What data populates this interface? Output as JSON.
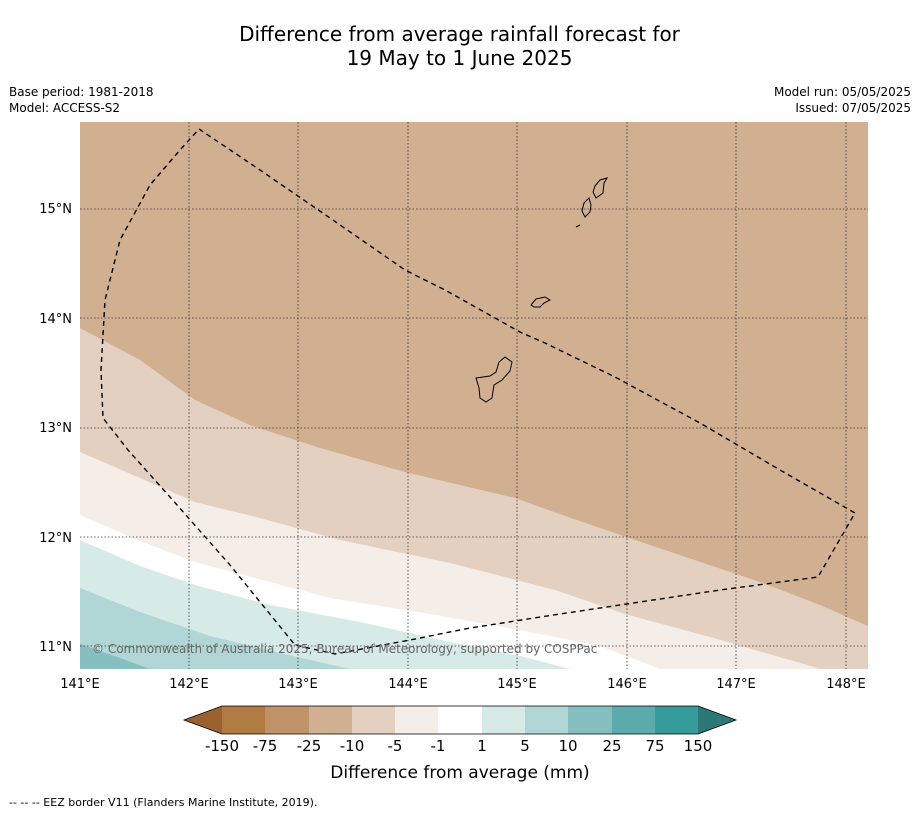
{
  "title": {
    "line1": "Difference from average rainfall forecast for",
    "line2": "19 May to 1 June 2025"
  },
  "meta": {
    "base_period": "Base period: 1981-2018",
    "model": "Model: ACCESS-S2",
    "model_run": "Model run: 05/05/2025",
    "issued": "Issued: 07/05/2025"
  },
  "map": {
    "lon_range": [
      141.0,
      148.2
    ],
    "lat_range": [
      10.8,
      15.8
    ],
    "lon_ticks": [
      "141°E",
      "142°E",
      "143°E",
      "144°E",
      "145°E",
      "146°E",
      "147°E",
      "148°E"
    ],
    "lat_ticks": [
      "15°N",
      "14°N",
      "13°N",
      "12°N",
      "11°N"
    ],
    "gridlines": true,
    "copyright": "© Commonwealth of Australia 2025, Bureau of Meteorology, supported by COSPPac"
  },
  "colorbar": {
    "title": "Difference from average (mm)",
    "labels": [
      "-150",
      "-75",
      "-25",
      "-10",
      "-5",
      "-1",
      "1",
      "5",
      "10",
      "25",
      "75",
      "150"
    ],
    "colors": [
      "#9b6130",
      "#b07a43",
      "#c09267",
      "#d1af91",
      "#e4d0c0",
      "#f5ede8",
      "#ffffff",
      "#d6eae8",
      "#b0d7d5",
      "#86bfbf",
      "#5cabac",
      "#359b9b",
      "#2b7877"
    ]
  },
  "footer": "--  --  -- EEZ border V11 (Flanders Marine Institute, 2019)."
}
